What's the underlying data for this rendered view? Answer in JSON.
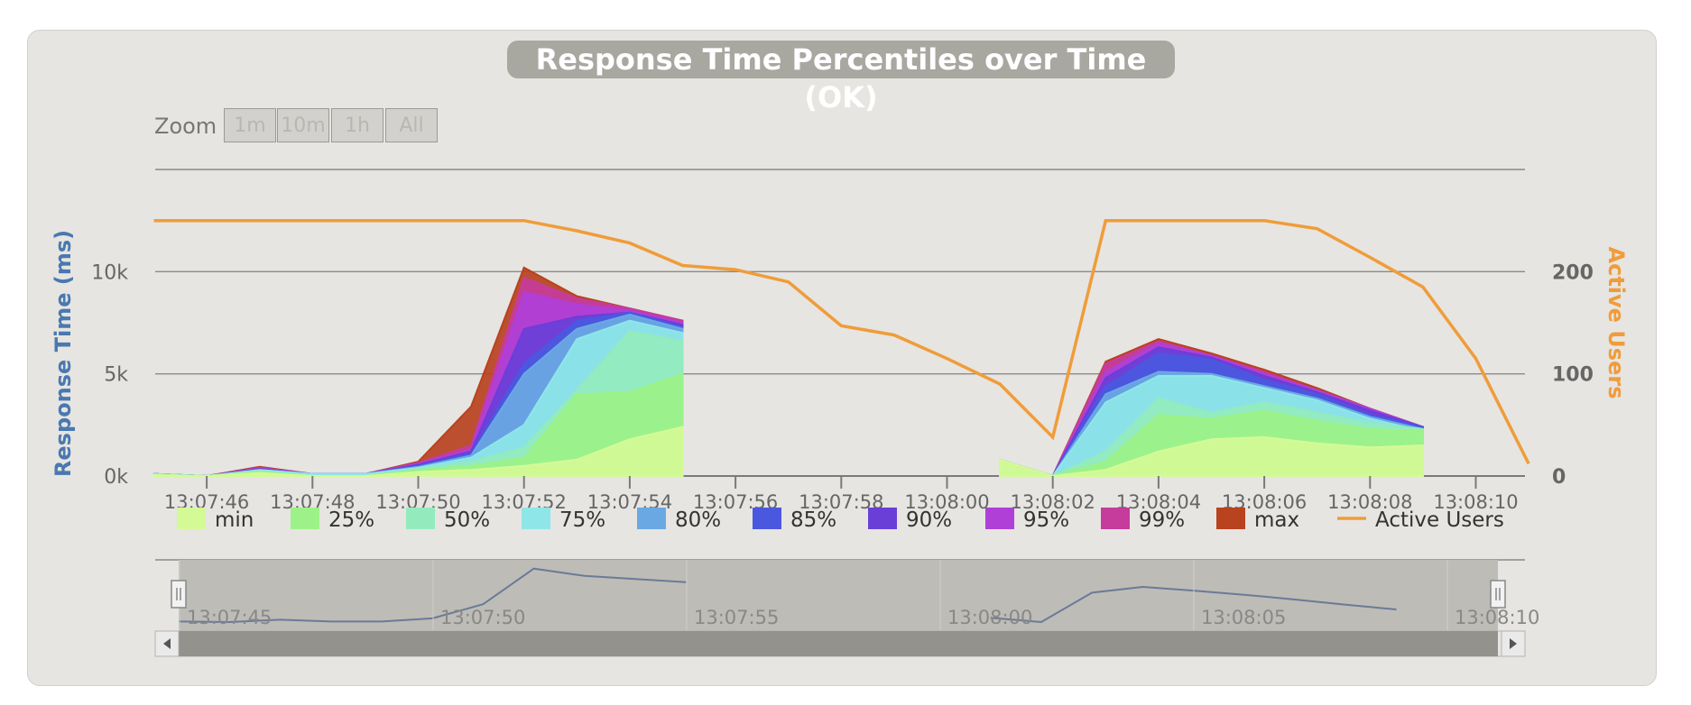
{
  "zoom": {
    "label": "Zoom",
    "buttons": [
      "1m",
      "10m",
      "1h",
      "All"
    ]
  },
  "navigator": {
    "ticks": [
      "13:07:45",
      "13:07:50",
      "13:07:55",
      "13:08:00",
      "13:08:05",
      "13:08:10"
    ]
  },
  "chart_data": {
    "type": "area",
    "title": "Response Time Percentiles over Time (OK)",
    "ylabel": "Response Time (ms)",
    "y2label": "Active Users",
    "ylim": [
      0,
      15000
    ],
    "y2lim": [
      0,
      300
    ],
    "yticks": [
      "0k",
      "5k",
      "10k"
    ],
    "y2ticks": [
      "0",
      "100",
      "200"
    ],
    "xticks": [
      "13:07:46",
      "13:07:48",
      "13:07:50",
      "13:07:52",
      "13:07:54",
      "13:07:56",
      "13:07:58",
      "13:08:00",
      "13:08:02",
      "13:08:04",
      "13:08:06",
      "13:08:08",
      "13:08:10"
    ],
    "grid": true,
    "legend_position": "bottom",
    "colors": {
      "min": "#d4fa96",
      "25%": "#9cf288",
      "50%": "#93ebbd",
      "75%": "#8ee6e8",
      "80%": "#6aa8e3",
      "85%": "#4a58df",
      "90%": "#6a3fd8",
      "95%": "#b03fd8",
      "99%": "#c53c9c",
      "max": "#b9421f",
      "Active Users": "#f09c3a"
    },
    "x": [
      "13:07:45",
      "13:07:46",
      "13:07:47",
      "13:07:48",
      "13:07:49",
      "13:07:50",
      "13:07:51",
      "13:07:52",
      "13:07:53",
      "13:07:54",
      "13:07:55",
      "13:07:56",
      "13:07:57",
      "13:07:58",
      "13:07:59",
      "13:08:00",
      "13:08:01",
      "13:08:02",
      "13:08:03",
      "13:08:04",
      "13:08:05",
      "13:08:06",
      "13:08:07",
      "13:08:08",
      "13:08:09",
      "13:08:10",
      "13:08:11"
    ],
    "series": [
      {
        "name": "min",
        "values": [
          50,
          0,
          150,
          0,
          0,
          200,
          300,
          500,
          800,
          1800,
          2400,
          null,
          null,
          null,
          null,
          null,
          800,
          0,
          300,
          1200,
          1800,
          1900,
          1600,
          1400,
          1500,
          null,
          null
        ]
      },
      {
        "name": "25%",
        "values": [
          50,
          0,
          200,
          0,
          0,
          300,
          500,
          900,
          4000,
          4100,
          5000,
          null,
          null,
          null,
          null,
          null,
          800,
          0,
          700,
          3000,
          2800,
          3200,
          2700,
          2300,
          2200,
          null,
          null
        ]
      },
      {
        "name": "50%",
        "values": [
          50,
          0,
          250,
          0,
          0,
          350,
          700,
          1400,
          4200,
          7100,
          6600,
          null,
          null,
          null,
          null,
          null,
          800,
          0,
          1200,
          3800,
          3100,
          3600,
          3100,
          2600,
          2300,
          null,
          null
        ]
      },
      {
        "name": "75%",
        "values": [
          100,
          0,
          300,
          100,
          100,
          400,
          900,
          2500,
          6700,
          7600,
          7000,
          null,
          null,
          null,
          null,
          null,
          800,
          0,
          3600,
          4900,
          4900,
          4300,
          3700,
          2800,
          2200,
          null,
          null
        ]
      },
      {
        "name": "80%",
        "values": [
          100,
          0,
          300,
          100,
          100,
          450,
          1000,
          5000,
          7200,
          7900,
          7200,
          null,
          null,
          null,
          null,
          null,
          800,
          0,
          4000,
          5100,
          5000,
          4400,
          3800,
          2900,
          2300,
          null,
          null
        ]
      },
      {
        "name": "85%",
        "values": [
          100,
          0,
          300,
          100,
          100,
          500,
          1100,
          5500,
          7600,
          8000,
          7300,
          null,
          null,
          null,
          null,
          null,
          800,
          0,
          4400,
          6000,
          5700,
          4700,
          4000,
          3000,
          2400,
          null,
          null
        ]
      },
      {
        "name": "90%",
        "values": [
          100,
          0,
          350,
          100,
          100,
          550,
          1200,
          7200,
          7800,
          8000,
          7400,
          null,
          null,
          null,
          null,
          null,
          800,
          0,
          4800,
          6300,
          5800,
          4900,
          4100,
          3200,
          2400,
          null,
          null
        ]
      },
      {
        "name": "95%",
        "values": [
          100,
          0,
          400,
          100,
          100,
          600,
          1300,
          9000,
          8400,
          8100,
          7500,
          null,
          null,
          null,
          null,
          null,
          800,
          0,
          5100,
          6500,
          5900,
          5000,
          4200,
          3300,
          2400,
          null,
          null
        ]
      },
      {
        "name": "99%",
        "values": [
          100,
          0,
          400,
          100,
          100,
          650,
          1500,
          9700,
          8700,
          8200,
          7600,
          null,
          null,
          null,
          null,
          null,
          800,
          0,
          5500,
          6600,
          5900,
          5100,
          4200,
          3300,
          2400,
          null,
          null
        ]
      },
      {
        "name": "max",
        "values": [
          100,
          0,
          450,
          100,
          100,
          700,
          3400,
          10200,
          8800,
          8200,
          7600,
          null,
          null,
          null,
          null,
          null,
          800,
          0,
          5600,
          6700,
          6000,
          5200,
          4300,
          3300,
          2400,
          null,
          null
        ]
      }
    ],
    "line_series": {
      "name": "Active Users",
      "x": [
        "13:07:45",
        "13:07:46",
        "13:07:47",
        "13:07:48",
        "13:07:49",
        "13:07:50",
        "13:07:51",
        "13:07:52",
        "13:07:53",
        "13:07:54",
        "13:07:55",
        "13:07:56",
        "13:07:57",
        "13:07:58",
        "13:07:59",
        "13:08:00",
        "13:08:01",
        "13:08:02",
        "13:08:03",
        "13:08:04",
        "13:08:05",
        "13:08:06",
        "13:08:07",
        "13:08:08",
        "13:08:09",
        "13:08:10",
        "13:08:11"
      ],
      "values": [
        250,
        250,
        250,
        250,
        250,
        250,
        250,
        250,
        240,
        228,
        206,
        202,
        190,
        147,
        138,
        115,
        90,
        38,
        250,
        250,
        250,
        250,
        242,
        214,
        185,
        115,
        12
      ]
    }
  }
}
